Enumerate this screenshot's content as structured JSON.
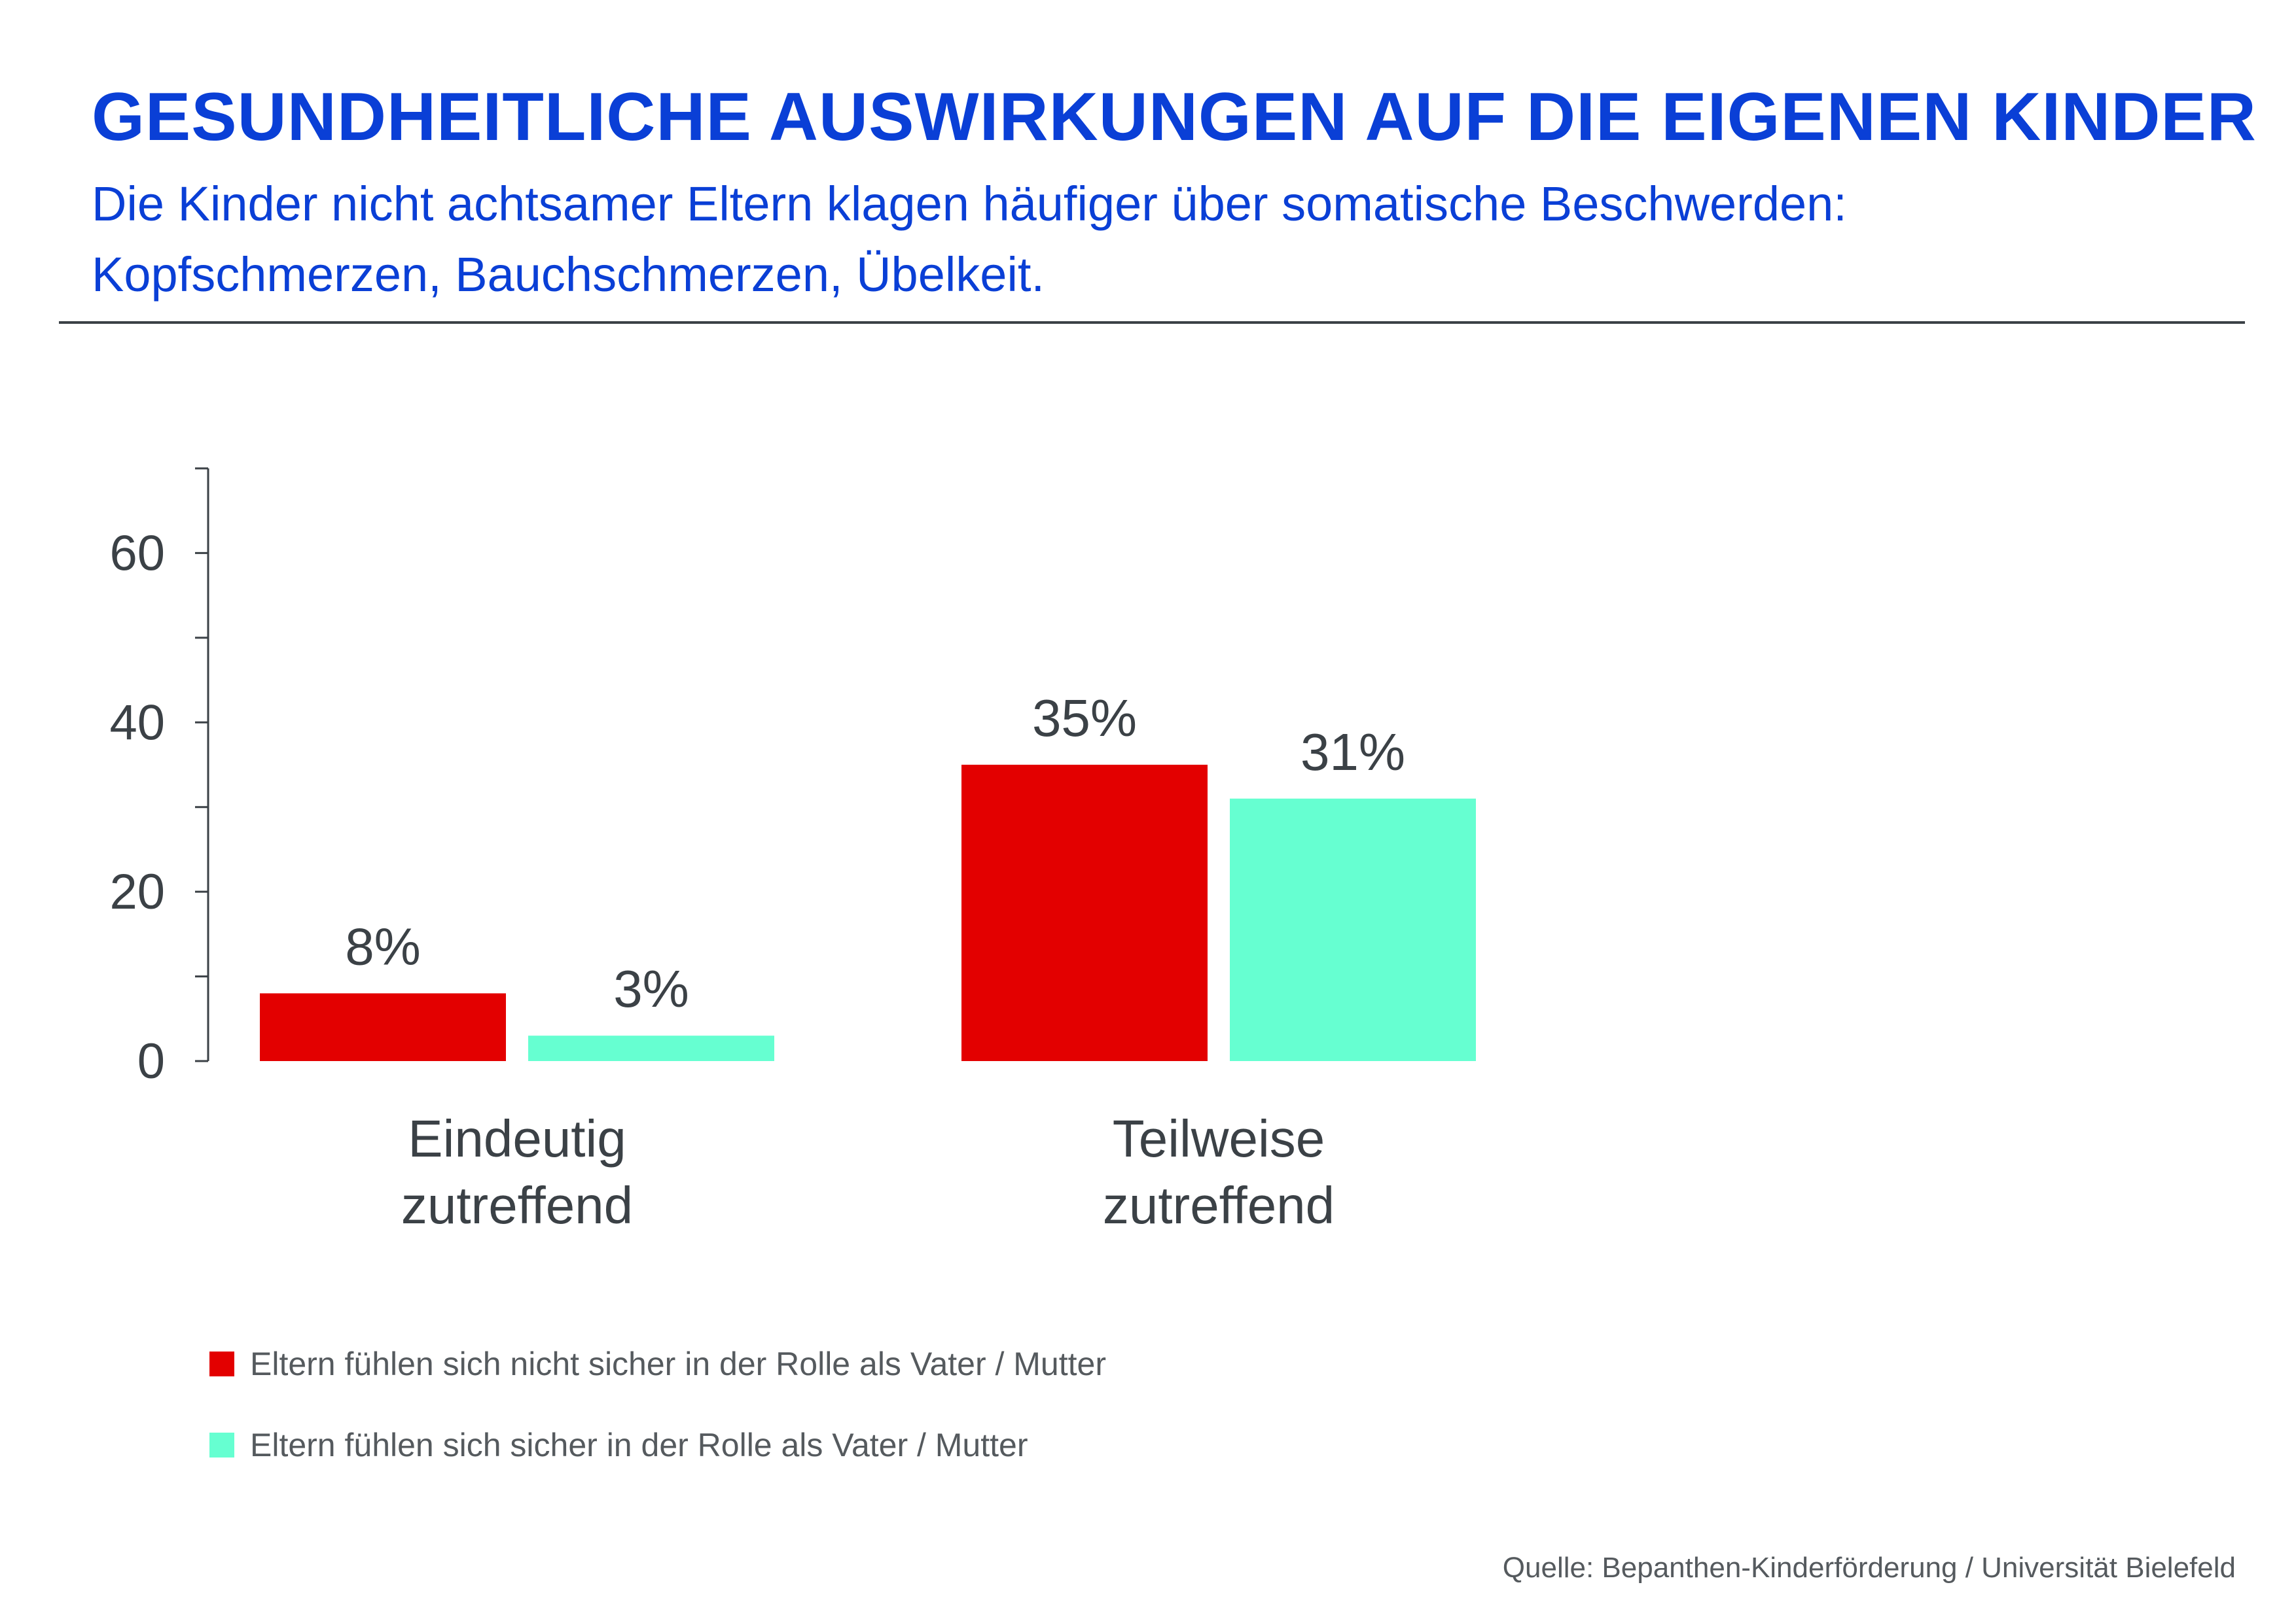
{
  "title": "GESUNDHEITLICHE AUSWIRKUNGEN AUF DIE EIGENEN KINDER",
  "subtitle_lines": [
    "Die Kinder nicht achtsamer Eltern klagen häufiger über somatische Beschwerden:",
    "Kopfschmerzen, Bauchschmerzen, Übelkeit."
  ],
  "source": "Quelle: Bepanthen-Kinderförderung / Universität Bielefeld",
  "colors": {
    "title": "#0a3fd6",
    "axis": "#3b4146",
    "text": "#3b4146"
  },
  "chart_data": {
    "type": "bar",
    "categories": [
      [
        "Eindeutig",
        "zutreffend"
      ],
      [
        "Teilweise",
        "zutreffend"
      ]
    ],
    "series": [
      {
        "name": "Eltern fühlen sich nicht sicher in der Rolle als Vater / Mutter",
        "color": "#e30000",
        "values": [
          8,
          35
        ],
        "labels": [
          "8%",
          "35%"
        ]
      },
      {
        "name": "Eltern fühlen sich sicher in der Rolle als Vater / Mutter",
        "color": "#66ffd1",
        "values": [
          3,
          31
        ],
        "labels": [
          "3%",
          "31%"
        ]
      }
    ],
    "ylim": [
      0,
      70
    ],
    "yticks": [
      0,
      20,
      40,
      60
    ],
    "yminor_step": 10,
    "xlabel": "",
    "ylabel": "",
    "grid": false,
    "legend": "bottom-left"
  }
}
